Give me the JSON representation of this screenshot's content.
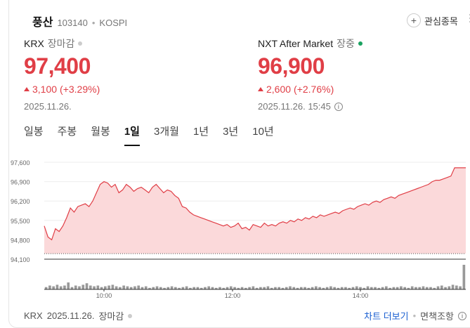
{
  "stock": {
    "name": "풍산",
    "code": "103140",
    "separator": "•",
    "market": "KOSPI"
  },
  "actions": {
    "favorite_label": "관심종목",
    "plus_symbol": "+",
    "more_symbol": "⋮"
  },
  "krx": {
    "label": "KRX",
    "status": "장마감",
    "dot_color": "#cccccc",
    "price": "97,400",
    "change": "3,100",
    "change_pct": "(+3.29%)",
    "date": "2025.11.26."
  },
  "nxt": {
    "label": "NXT After Market",
    "status": "장중",
    "dot_color": "#1aa260",
    "price": "96,900",
    "change": "2,600",
    "change_pct": "(+2.76%)",
    "date": "2025.11.26. 15:45",
    "info_symbol": "i"
  },
  "tabs": [
    "일봉",
    "주봉",
    "월봉",
    "1일",
    "3개월",
    "1년",
    "3년",
    "10년"
  ],
  "active_tab": "1일",
  "colors": {
    "up": "#e03e46",
    "fill": "#fbd9da",
    "volume": "#999999",
    "link": "#1a5fd1"
  },
  "chart_data": {
    "type": "area",
    "y_ticks": [
      "97,600",
      "96,900",
      "96,200",
      "95,500",
      "94,800",
      "94,100"
    ],
    "ylim": [
      94100,
      97600
    ],
    "x_ticks": [
      "10:00",
      "12:00",
      "14:00"
    ],
    "prev_close": 94300,
    "prices": [
      95300,
      94900,
      94800,
      95200,
      95100,
      95300,
      95600,
      95950,
      95800,
      96000,
      96050,
      96100,
      96000,
      96200,
      96500,
      96800,
      96900,
      96850,
      96700,
      96800,
      96500,
      96600,
      96800,
      96700,
      96550,
      96650,
      96700,
      96600,
      96500,
      96700,
      96800,
      96650,
      96500,
      96600,
      96550,
      96400,
      96300,
      96000,
      95950,
      95800,
      95700,
      95650,
      95600,
      95550,
      95500,
      95450,
      95400,
      95350,
      95300,
      95350,
      95250,
      95300,
      95400,
      95200,
      95250,
      95150,
      95350,
      95300,
      95250,
      95400,
      95300,
      95350,
      95300,
      95400,
      95450,
      95400,
      95500,
      95450,
      95550,
      95500,
      95600,
      95550,
      95650,
      95600,
      95700,
      95650,
      95700,
      95750,
      95800,
      95750,
      95850,
      95900,
      95950,
      95900,
      96000,
      96050,
      96100,
      96050,
      96150,
      96200,
      96150,
      96250,
      96300,
      96350,
      96300,
      96400,
      96450,
      96500,
      96550,
      96600,
      96650,
      96700,
      96750,
      96800,
      96900,
      96950,
      96950,
      97000,
      97050,
      97100,
      97400,
      97400,
      97400,
      97400
    ],
    "volumes": [
      3,
      5,
      4,
      6,
      4,
      5,
      9,
      3,
      5,
      4,
      6,
      8,
      5,
      4,
      5,
      3,
      4,
      5,
      6,
      4,
      3,
      5,
      4,
      3,
      4,
      5,
      3,
      4,
      2,
      3,
      4,
      3,
      2,
      3,
      4,
      3,
      2,
      3,
      4,
      2,
      3,
      3,
      2,
      3,
      4,
      3,
      2,
      3,
      2,
      3,
      4,
      3,
      2,
      3,
      2,
      3,
      4,
      2,
      3,
      3,
      4,
      2,
      3,
      3,
      2,
      3,
      4,
      3,
      2,
      3,
      3,
      2,
      3,
      4,
      3,
      2,
      3,
      4,
      3,
      2,
      3,
      3,
      2,
      3,
      4,
      3,
      2,
      4,
      3,
      3,
      2,
      3,
      4,
      2,
      3,
      3,
      4,
      3,
      2,
      4,
      3,
      3,
      4,
      3,
      3,
      2,
      4,
      5,
      3,
      4,
      6,
      5,
      4,
      32
    ]
  },
  "footer": {
    "market": "KRX",
    "date": "2025.11.26.",
    "status": "장마감",
    "chart_more": "차트 더보기",
    "disclaimer": "면책조항",
    "separator": "•"
  }
}
